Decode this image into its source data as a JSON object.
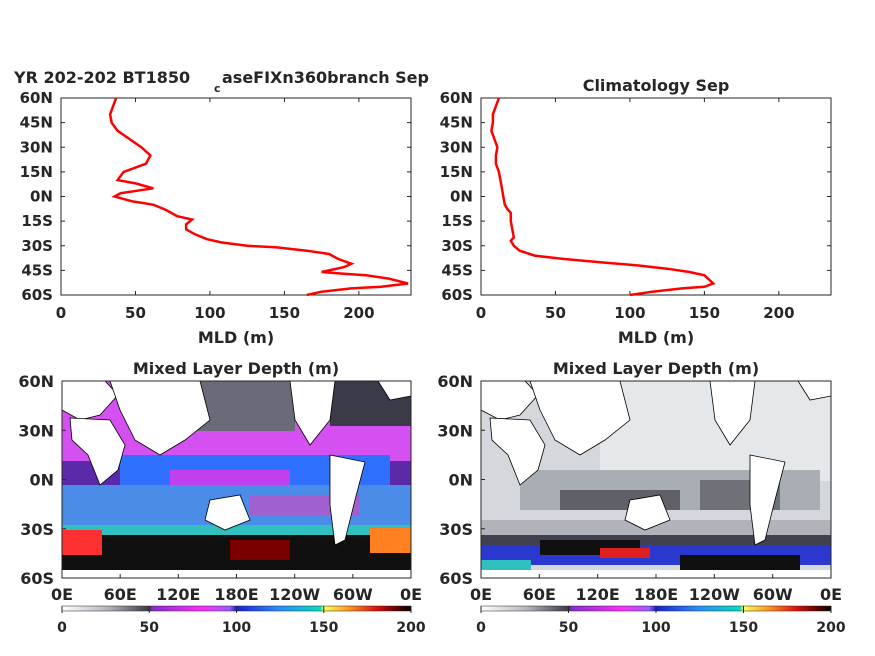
{
  "chart_data": [
    {
      "type": "line",
      "title_main": "YR 202-202 BT1850",
      "title_sub": "c",
      "title_rest": "aseFIXn360branch Sep",
      "xlabel": "MLD (m)",
      "xlim": [
        0,
        235
      ],
      "xticks": [
        "0",
        "50",
        "100",
        "150",
        "200"
      ],
      "yticks": [
        "60N",
        "45N",
        "30N",
        "15N",
        "0N",
        "15S",
        "30S",
        "45S",
        "60S"
      ],
      "ylim": [
        -60,
        60
      ],
      "color": "#ff0000",
      "x": [
        37,
        35,
        33,
        34,
        38,
        46,
        54,
        60,
        57,
        42,
        38,
        50,
        62,
        40,
        36,
        48,
        62,
        70,
        74,
        78,
        88,
        84,
        84,
        90,
        98,
        108,
        125,
        145,
        165,
        180,
        186,
        195,
        190,
        180,
        175,
        190,
        205,
        220,
        233,
        215,
        195,
        175,
        165
      ],
      "y": [
        60,
        55,
        50,
        45,
        40,
        35,
        30,
        25,
        20,
        15,
        10,
        8,
        5,
        2,
        0,
        -3,
        -5,
        -8,
        -10,
        -12,
        -14,
        -17,
        -20,
        -23,
        -26,
        -28,
        -30,
        -31,
        -33,
        -35,
        -38,
        -41,
        -43,
        -45,
        -46,
        -47,
        -48,
        -50,
        -53,
        -55,
        -56,
        -58,
        -60
      ]
    },
    {
      "type": "line",
      "title": "Climatology Sep",
      "xlabel": "MLD (m)",
      "xlim": [
        0,
        235
      ],
      "xticks": [
        "0",
        "50",
        "100",
        "150",
        "200"
      ],
      "yticks": [
        "60N",
        "45N",
        "30N",
        "15N",
        "0N",
        "15S",
        "30S",
        "45S",
        "60S"
      ],
      "ylim": [
        -60,
        60
      ],
      "color": "#ff0000",
      "x": [
        12,
        10,
        8,
        8,
        7,
        9,
        11,
        10,
        10,
        12,
        13,
        14,
        15,
        16,
        18,
        20,
        20,
        21,
        22,
        20,
        22,
        26,
        36,
        55,
        80,
        105,
        125,
        140,
        150,
        156,
        150,
        135,
        115,
        100
      ],
      "y": [
        60,
        55,
        50,
        45,
        40,
        35,
        30,
        25,
        20,
        15,
        10,
        5,
        0,
        -5,
        -8,
        -10,
        -15,
        -20,
        -25,
        -27,
        -30,
        -33,
        -36,
        -38,
        -40,
        -42,
        -44,
        -46,
        -48,
        -53,
        -55,
        -56,
        -58,
        -60
      ]
    },
    {
      "type": "heatmap",
      "title": "Mixed Layer Depth (m)",
      "xticks": [
        "0E",
        "60E",
        "120E",
        "180E",
        "120W",
        "60W",
        "0E"
      ],
      "yticks": [
        "60N",
        "30N",
        "0N",
        "30S",
        "60S"
      ],
      "ylim": [
        -60,
        60
      ],
      "colorbar": {
        "ticks": [
          "0",
          "50",
          "100",
          "150",
          "200"
        ],
        "range": [
          0,
          200
        ]
      }
    },
    {
      "type": "heatmap",
      "title": "Mixed Layer Depth (m)",
      "xticks": [
        "0E",
        "60E",
        "120E",
        "180E",
        "120W",
        "60W",
        "0E"
      ],
      "yticks": [
        "60N",
        "30N",
        "0N",
        "30S",
        "60S"
      ],
      "ylim": [
        -60,
        60
      ],
      "colorbar": {
        "ticks": [
          "0",
          "50",
          "100",
          "150",
          "200"
        ],
        "range": [
          0,
          200
        ]
      }
    }
  ]
}
